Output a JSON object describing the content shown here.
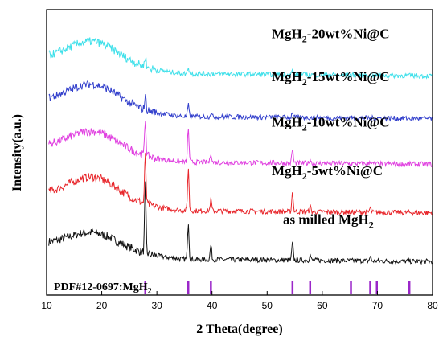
{
  "chart_data": {
    "type": "line",
    "xlabel": "2 Theta(degree)",
    "ylabel": "Intensity(a.u.)",
    "xlim": [
      10,
      80
    ],
    "x_ticks": [
      "10",
      "20",
      "30",
      "40",
      "50",
      "60",
      "70",
      "80"
    ],
    "y_ticks_shown": false,
    "reference": {
      "label_main": "PDF#12-0697:MgH",
      "label_sub": "2",
      "color": "#9b27c9",
      "peaks": [
        27.9,
        35.7,
        39.8,
        54.6,
        57.8,
        65.2,
        68.7,
        69.9,
        75.8
      ]
    },
    "series": [
      {
        "label_main": "as milled MgH",
        "label_sub": "2",
        "label_tail": "",
        "color": "#111111",
        "baseline": 0.13,
        "hump": 0.06,
        "peaks": [
          [
            27.9,
            0.24
          ],
          [
            35.7,
            0.13
          ],
          [
            39.8,
            0.05
          ],
          [
            54.6,
            0.06
          ],
          [
            57.8,
            0.02
          ],
          [
            68.7,
            0.015
          ]
        ]
      },
      {
        "label_main": "MgH",
        "label_sub": "2",
        "label_tail": "-5wt%Ni@C",
        "color": "#e8262b",
        "baseline": 0.3,
        "hump": 0.085,
        "peaks": [
          [
            27.9,
            0.17
          ],
          [
            35.7,
            0.15
          ],
          [
            39.8,
            0.04
          ],
          [
            54.6,
            0.07
          ],
          [
            57.8,
            0.02
          ],
          [
            68.7,
            0.015
          ]
        ]
      },
      {
        "label_main": "MgH",
        "label_sub": "2",
        "label_tail": "-10wt%Ni@C",
        "color": "#e040e0",
        "baseline": 0.47,
        "hump": 0.075,
        "peaks": [
          [
            27.9,
            0.13
          ],
          [
            35.7,
            0.12
          ],
          [
            39.8,
            0.035
          ],
          [
            54.6,
            0.05
          ],
          [
            57.8,
            0.015
          ],
          [
            68.7,
            0.01
          ]
        ]
      },
      {
        "label_main": "MgH",
        "label_sub": "2",
        "label_tail": "-15wt%Ni@C",
        "color": "#3340cc",
        "baseline": 0.63,
        "hump": 0.08,
        "peaks": [
          [
            27.9,
            0.05
          ],
          [
            35.7,
            0.04
          ],
          [
            39.8,
            0.015
          ],
          [
            54.6,
            0.02
          ]
        ]
      },
      {
        "label_main": "MgH",
        "label_sub": "2",
        "label_tail": "-20wt%Ni@C",
        "color": "#3fe0ea",
        "baseline": 0.78,
        "hump": 0.08,
        "peaks": [
          [
            27.9,
            0.04
          ],
          [
            35.7,
            0.025
          ],
          [
            54.6,
            0.015
          ]
        ]
      }
    ]
  }
}
